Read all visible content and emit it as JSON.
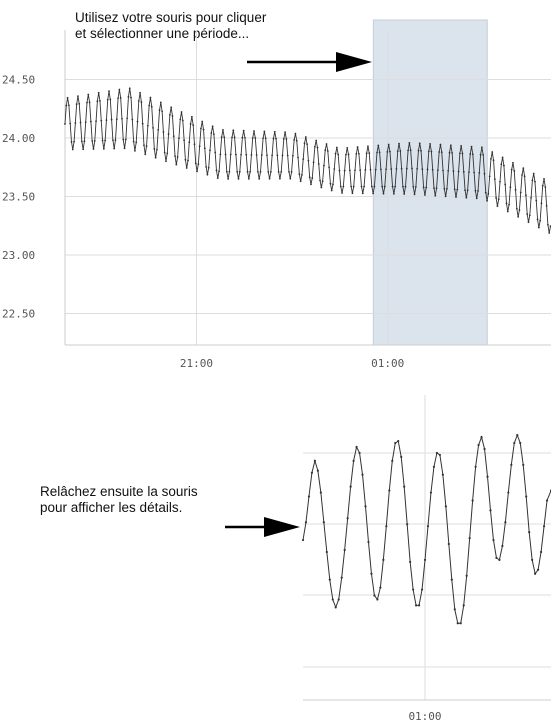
{
  "instructions": {
    "select": [
      "Utilisez votre souris pour cliquer",
      "et sélectionner une période..."
    ],
    "release": [
      "Relâchez ensuite la souris",
      "pour afficher les détails."
    ]
  },
  "colors": {
    "line": "#333333",
    "grid": "#dddddd",
    "selection": "#dbe3ec",
    "selection_border": "#c4cfdc",
    "axis_text": "#555555"
  },
  "chart_data": [
    {
      "type": "line",
      "title": "",
      "xlabel": "",
      "ylabel": "",
      "y_ticks": [
        "22.50",
        "23.00",
        "23.50",
        "24.00",
        "24.50"
      ],
      "x_ticks": [
        "21:00",
        "01:00"
      ],
      "ylim": [
        22.3,
        24.85
      ],
      "x_range_hours": [
        "18:15",
        "04:25"
      ],
      "grid": true,
      "selected_period": [
        "00:42",
        "03:05"
      ],
      "signal": {
        "period_minutes": 13,
        "trend": [
          {
            "x": "18:15",
            "y": 24.12
          },
          {
            "x": "19:35",
            "y": 24.17
          },
          {
            "x": "20:30",
            "y": 24.02
          },
          {
            "x": "21:30",
            "y": 23.86
          },
          {
            "x": "23:00",
            "y": 23.85
          },
          {
            "x": "00:00",
            "y": 23.72
          },
          {
            "x": "01:30",
            "y": 23.74
          },
          {
            "x": "03:00",
            "y": 23.7
          },
          {
            "x": "04:25",
            "y": 23.4
          }
        ],
        "amplitude": [
          {
            "x": "18:15",
            "y": 0.22
          },
          {
            "x": "19:40",
            "y": 0.26
          },
          {
            "x": "21:30",
            "y": 0.21
          },
          {
            "x": "00:00",
            "y": 0.19
          },
          {
            "x": "01:30",
            "y": 0.22
          },
          {
            "x": "03:00",
            "y": 0.22
          },
          {
            "x": "04:25",
            "y": 0.22
          }
        ]
      }
    },
    {
      "type": "line",
      "title": "",
      "x_ticks": [
        "01:00"
      ],
      "description_of_range": "zoomed detail of selected period",
      "grid": true,
      "points": [
        [
          0.0,
          0.53
        ],
        [
          0.012,
          0.62
        ],
        [
          0.024,
          0.75
        ],
        [
          0.036,
          0.87
        ],
        [
          0.048,
          0.93
        ],
        [
          0.06,
          0.88
        ],
        [
          0.072,
          0.77
        ],
        [
          0.084,
          0.62
        ],
        [
          0.096,
          0.47
        ],
        [
          0.108,
          0.33
        ],
        [
          0.12,
          0.23
        ],
        [
          0.132,
          0.19
        ],
        [
          0.144,
          0.23
        ],
        [
          0.156,
          0.34
        ],
        [
          0.168,
          0.48
        ],
        [
          0.18,
          0.64
        ],
        [
          0.192,
          0.8
        ],
        [
          0.204,
          0.93
        ],
        [
          0.216,
          1.0
        ],
        [
          0.228,
          0.97
        ],
        [
          0.24,
          0.86
        ],
        [
          0.252,
          0.7
        ],
        [
          0.264,
          0.52
        ],
        [
          0.276,
          0.36
        ],
        [
          0.288,
          0.25
        ],
        [
          0.3,
          0.23
        ],
        [
          0.312,
          0.29
        ],
        [
          0.324,
          0.43
        ],
        [
          0.336,
          0.6
        ],
        [
          0.348,
          0.78
        ],
        [
          0.36,
          0.93
        ],
        [
          0.372,
          1.02
        ],
        [
          0.384,
          1.03
        ],
        [
          0.396,
          0.95
        ],
        [
          0.408,
          0.8
        ],
        [
          0.42,
          0.61
        ],
        [
          0.432,
          0.42
        ],
        [
          0.444,
          0.28
        ],
        [
          0.456,
          0.2
        ],
        [
          0.468,
          0.2
        ],
        [
          0.48,
          0.28
        ],
        [
          0.492,
          0.43
        ],
        [
          0.504,
          0.6
        ],
        [
          0.516,
          0.77
        ],
        [
          0.528,
          0.9
        ],
        [
          0.54,
          0.97
        ],
        [
          0.552,
          0.96
        ],
        [
          0.564,
          0.86
        ],
        [
          0.576,
          0.7
        ],
        [
          0.588,
          0.51
        ],
        [
          0.6,
          0.33
        ],
        [
          0.612,
          0.18
        ],
        [
          0.624,
          0.11
        ],
        [
          0.636,
          0.11
        ],
        [
          0.648,
          0.2
        ],
        [
          0.66,
          0.35
        ],
        [
          0.672,
          0.54
        ],
        [
          0.684,
          0.73
        ],
        [
          0.696,
          0.9
        ],
        [
          0.708,
          1.01
        ],
        [
          0.72,
          1.05
        ],
        [
          0.732,
          0.99
        ],
        [
          0.744,
          0.85
        ],
        [
          0.756,
          0.68
        ],
        [
          0.768,
          0.53
        ],
        [
          0.78,
          0.44
        ],
        [
          0.792,
          0.43
        ],
        [
          0.804,
          0.5
        ],
        [
          0.816,
          0.62
        ],
        [
          0.828,
          0.77
        ],
        [
          0.84,
          0.91
        ],
        [
          0.852,
          1.02
        ],
        [
          0.864,
          1.06
        ],
        [
          0.876,
          1.02
        ],
        [
          0.888,
          0.91
        ],
        [
          0.9,
          0.75
        ],
        [
          0.912,
          0.57
        ],
        [
          0.924,
          0.43
        ],
        [
          0.936,
          0.36
        ],
        [
          0.948,
          0.38
        ],
        [
          0.96,
          0.47
        ],
        [
          0.972,
          0.6
        ],
        [
          0.984,
          0.73
        ],
        [
          1.0,
          0.78
        ]
      ]
    }
  ]
}
